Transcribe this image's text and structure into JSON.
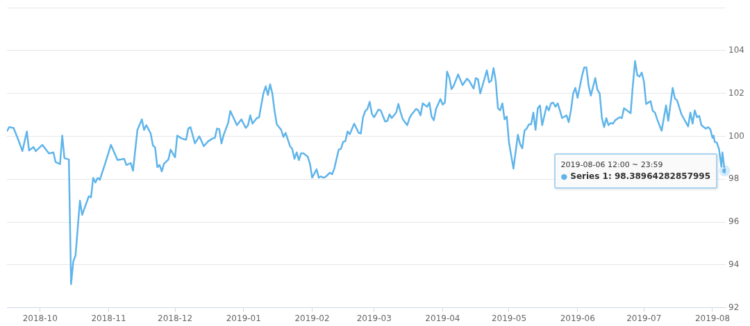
{
  "chart_data": {
    "type": "line",
    "x": [
      "2018-09-16",
      "2018-09-17",
      "2018-09-19",
      "2018-09-21",
      "2018-09-23",
      "2018-09-25",
      "2018-09-26",
      "2018-09-28",
      "2018-09-29",
      "2018-10-02",
      "2018-10-05",
      "2018-10-07",
      "2018-10-08",
      "2018-10-10",
      "2018-10-11",
      "2018-10-12",
      "2018-10-14",
      "2018-10-15",
      "2018-10-16",
      "2018-10-17",
      "2018-10-19",
      "2018-10-20",
      "2018-10-23",
      "2018-10-24",
      "2018-10-25",
      "2018-10-26",
      "2018-10-27",
      "2018-10-28",
      "2018-10-31",
      "2018-11-02",
      "2018-11-05",
      "2018-11-08",
      "2018-11-09",
      "2018-11-11",
      "2018-11-12",
      "2018-11-14",
      "2018-11-16",
      "2018-11-17",
      "2018-11-18",
      "2018-11-20",
      "2018-11-21",
      "2018-11-22",
      "2018-11-23",
      "2018-11-24",
      "2018-11-25",
      "2018-11-26",
      "2018-11-28",
      "2018-11-29",
      "2018-12-01",
      "2018-12-02",
      "2018-12-04",
      "2018-12-06",
      "2018-12-07",
      "2018-12-08",
      "2018-12-10",
      "2018-12-12",
      "2018-12-14",
      "2018-12-16",
      "2018-12-18",
      "2018-12-19",
      "2018-12-20",
      "2018-12-21",
      "2018-12-22",
      "2018-12-23",
      "2018-12-25",
      "2018-12-26",
      "2018-12-29",
      "2018-12-31",
      "2019-01-02",
      "2019-01-03",
      "2019-01-04",
      "2019-01-05",
      "2019-01-07",
      "2019-01-08",
      "2019-01-10",
      "2019-01-11",
      "2019-01-12",
      "2019-01-13",
      "2019-01-14",
      "2019-01-15",
      "2019-01-16",
      "2019-01-18",
      "2019-01-19",
      "2019-01-20",
      "2019-01-22",
      "2019-01-23",
      "2019-01-24",
      "2019-01-25",
      "2019-01-26",
      "2019-01-27",
      "2019-01-28",
      "2019-01-30",
      "2019-01-31",
      "2019-02-01",
      "2019-02-03",
      "2019-02-04",
      "2019-02-05",
      "2019-02-06",
      "2019-02-07",
      "2019-02-09",
      "2019-02-10",
      "2019-02-11",
      "2019-02-13",
      "2019-02-14",
      "2019-02-15",
      "2019-02-16",
      "2019-02-17",
      "2019-02-18",
      "2019-02-20",
      "2019-02-22",
      "2019-02-23",
      "2019-02-24",
      "2019-02-25",
      "2019-02-26",
      "2019-02-27",
      "2019-02-28",
      "2019-03-01",
      "2019-03-03",
      "2019-03-04",
      "2019-03-06",
      "2019-03-07",
      "2019-03-08",
      "2019-03-09",
      "2019-03-11",
      "2019-03-12",
      "2019-03-13",
      "2019-03-14",
      "2019-03-16",
      "2019-03-17",
      "2019-03-18",
      "2019-03-20",
      "2019-03-21",
      "2019-03-22",
      "2019-03-23",
      "2019-03-25",
      "2019-03-26",
      "2019-03-27",
      "2019-03-28",
      "2019-03-29",
      "2019-03-31",
      "2019-04-01",
      "2019-04-02",
      "2019-04-03",
      "2019-04-04",
      "2019-04-05",
      "2019-04-06",
      "2019-04-08",
      "2019-04-10",
      "2019-04-12",
      "2019-04-13",
      "2019-04-15",
      "2019-04-16",
      "2019-04-17",
      "2019-04-18",
      "2019-04-21",
      "2019-04-22",
      "2019-04-23",
      "2019-04-24",
      "2019-04-25",
      "2019-04-26",
      "2019-04-27",
      "2019-04-28",
      "2019-04-29",
      "2019-04-30",
      "2019-05-01",
      "2019-05-03",
      "2019-05-05",
      "2019-05-06",
      "2019-05-07",
      "2019-05-08",
      "2019-05-09",
      "2019-05-10",
      "2019-05-11",
      "2019-05-12",
      "2019-05-13",
      "2019-05-14",
      "2019-05-15",
      "2019-05-16",
      "2019-05-18",
      "2019-05-19",
      "2019-05-20",
      "2019-05-21",
      "2019-05-22",
      "2019-05-23",
      "2019-05-24",
      "2019-05-25",
      "2019-05-27",
      "2019-05-28",
      "2019-05-29",
      "2019-05-30",
      "2019-05-31",
      "2019-06-01",
      "2019-06-03",
      "2019-06-04",
      "2019-06-05",
      "2019-06-06",
      "2019-06-07",
      "2019-06-09",
      "2019-06-10",
      "2019-06-11",
      "2019-06-12",
      "2019-06-13",
      "2019-06-14",
      "2019-06-15",
      "2019-06-16",
      "2019-06-17",
      "2019-06-18",
      "2019-06-20",
      "2019-06-21",
      "2019-06-22",
      "2019-06-25",
      "2019-06-26",
      "2019-06-27",
      "2019-06-28",
      "2019-06-29",
      "2019-06-30",
      "2019-07-01",
      "2019-07-02",
      "2019-07-04",
      "2019-07-05",
      "2019-07-06",
      "2019-07-07",
      "2019-07-09",
      "2019-07-11",
      "2019-07-12",
      "2019-07-14",
      "2019-07-15",
      "2019-07-16",
      "2019-07-18",
      "2019-07-21",
      "2019-07-22",
      "2019-07-23",
      "2019-07-24",
      "2019-07-25",
      "2019-07-26",
      "2019-07-27",
      "2019-07-29",
      "2019-07-30",
      "2019-07-31",
      "2019-08-01",
      "2019-08-01T12:00",
      "2019-08-02",
      "2019-08-03",
      "2019-08-04",
      "2019-08-05",
      "2019-08-05T12:00",
      "2019-08-06T12:00"
    ],
    "series": [
      {
        "color": "#5fb4ea",
        "values": [
          100.23,
          100.43,
          100.39,
          99.87,
          99.31,
          100.23,
          99.34,
          99.5,
          99.31,
          99.6,
          99.2,
          99.25,
          98.8,
          98.7,
          100.03,
          98.98,
          98.92,
          93.1,
          94.16,
          94.43,
          97.0,
          96.33,
          97.2,
          97.15,
          98.06,
          97.84,
          98.06,
          97.97,
          98.92,
          99.6,
          98.89,
          98.95,
          98.66,
          98.75,
          98.39,
          100.3,
          100.79,
          100.3,
          100.52,
          100.13,
          99.57,
          99.48,
          98.56,
          98.66,
          98.36,
          98.72,
          98.92,
          99.38,
          99.02,
          100.03,
          99.9,
          99.84,
          100.36,
          100.43,
          99.67,
          100.0,
          99.54,
          99.77,
          99.9,
          99.93,
          100.36,
          100.33,
          99.67,
          100.07,
          100.62,
          101.18,
          100.52,
          100.79,
          100.39,
          100.52,
          100.98,
          100.59,
          100.85,
          100.89,
          102.03,
          102.33,
          101.93,
          102.43,
          102.0,
          101.18,
          100.56,
          100.3,
          99.97,
          100.16,
          99.54,
          99.41,
          98.95,
          99.25,
          98.89,
          99.21,
          99.21,
          99.05,
          98.72,
          98.07,
          98.46,
          98.07,
          98.13,
          98.07,
          98.1,
          98.3,
          98.23,
          98.49,
          99.38,
          99.41,
          99.74,
          99.77,
          100.23,
          100.1,
          100.59,
          100.16,
          100.13,
          100.89,
          101.18,
          101.28,
          101.61,
          101.05,
          100.89,
          101.25,
          101.21,
          100.69,
          100.72,
          101.02,
          100.85,
          101.11,
          101.51,
          101.11,
          100.79,
          100.52,
          100.85,
          101.02,
          101.28,
          101.21,
          100.98,
          101.54,
          101.38,
          101.57,
          100.92,
          100.75,
          101.28,
          101.74,
          101.48,
          101.57,
          103.02,
          102.75,
          102.2,
          102.36,
          102.89,
          102.39,
          102.69,
          102.59,
          102.23,
          102.72,
          102.66,
          102.0,
          103.08,
          102.52,
          102.59,
          103.18,
          102.59,
          101.31,
          101.21,
          101.54,
          100.79,
          100.92,
          99.7,
          98.49,
          100.07,
          99.64,
          99.44,
          100.26,
          100.36,
          100.56,
          100.56,
          101.11,
          100.3,
          101.31,
          101.44,
          100.52,
          101.41,
          101.21,
          101.54,
          101.57,
          101.38,
          101.54,
          101.21,
          100.85,
          100.98,
          100.66,
          101.21,
          102.0,
          102.26,
          101.8,
          102.82,
          103.21,
          103.21,
          102.36,
          101.9,
          102.72,
          102.16,
          102.0,
          100.85,
          100.43,
          100.85,
          100.52,
          100.62,
          100.59,
          100.75,
          100.89,
          100.85,
          101.31,
          101.08,
          102.39,
          103.51,
          102.85,
          102.79,
          102.98,
          102.56,
          101.51,
          101.64,
          101.18,
          101.11,
          100.79,
          100.26,
          101.44,
          100.72,
          102.26,
          101.77,
          101.67,
          101.02,
          100.46,
          101.11,
          100.59,
          101.21,
          100.89,
          100.95,
          100.52,
          100.36,
          100.43,
          100.33,
          99.93,
          100.03,
          99.74,
          99.7,
          99.38,
          98.59,
          99.25,
          98.39
        ]
      }
    ],
    "xlim": [
      "2018-09-16",
      "2019-08-07"
    ],
    "xticks": [
      "2018-10",
      "2018-11",
      "2018-12",
      "2019-01",
      "2019-02",
      "2019-03",
      "2019-04",
      "2019-05",
      "2019-06",
      "2019-07",
      "2019-08"
    ],
    "ylim": [
      92,
      106
    ],
    "yticks": [
      92,
      94,
      96,
      98,
      100,
      102,
      104,
      {
        "value": 106,
        "label": null
      }
    ],
    "grid": "y",
    "annotations": [
      "2019-08-06 12:00 ~ 23:59",
      "● Series 1: 98.38964282857995"
    ]
  }
}
